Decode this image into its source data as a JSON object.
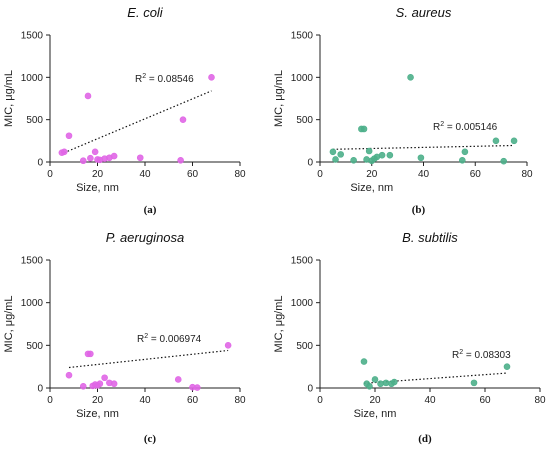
{
  "chart_data": [
    {
      "type": "scatter",
      "title": "E. coli",
      "caption": "(a)",
      "xlabel": "Size, nm",
      "ylabel": "MIC, μg/mL",
      "xlim": [
        0,
        80
      ],
      "ylim": [
        0,
        1500
      ],
      "xticks": [
        0,
        20,
        40,
        60,
        80
      ],
      "yticks": [
        0,
        500,
        1000,
        1500
      ],
      "color": "#e066e6",
      "r2_text": "R",
      "r2_sup": "2",
      "r2_value": " = 0.08546",
      "trend": {
        "x": [
          6,
          68
        ],
        "y": [
          110,
          840
        ]
      },
      "points": [
        {
          "x": 5,
          "y": 110
        },
        {
          "x": 6,
          "y": 120
        },
        {
          "x": 8,
          "y": 310
        },
        {
          "x": 14,
          "y": 15
        },
        {
          "x": 16,
          "y": 780
        },
        {
          "x": 17,
          "y": 45
        },
        {
          "x": 19,
          "y": 120
        },
        {
          "x": 20,
          "y": 30
        },
        {
          "x": 21,
          "y": 25
        },
        {
          "x": 23,
          "y": 40
        },
        {
          "x": 25,
          "y": 50
        },
        {
          "x": 27,
          "y": 70
        },
        {
          "x": 38,
          "y": 50
        },
        {
          "x": 55,
          "y": 20
        },
        {
          "x": 56,
          "y": 500
        },
        {
          "x": 68,
          "y": 1000
        }
      ]
    },
    {
      "type": "scatter",
      "title": "S. aureus",
      "caption": "(b)",
      "xlabel": "Size, nm",
      "ylabel": "MIC, μg/mL",
      "xlim": [
        0,
        80
      ],
      "ylim": [
        0,
        1500
      ],
      "xticks": [
        0,
        20,
        40,
        60,
        80
      ],
      "yticks": [
        0,
        500,
        1000,
        1500
      ],
      "color": "#4caf8a",
      "r2_text": "R",
      "r2_sup": "2",
      "r2_value": " = 0.005146",
      "trend": {
        "x": [
          5,
          75
        ],
        "y": [
          150,
          195
        ]
      },
      "points": [
        {
          "x": 5,
          "y": 120
        },
        {
          "x": 6,
          "y": 30
        },
        {
          "x": 8,
          "y": 90
        },
        {
          "x": 13,
          "y": 20
        },
        {
          "x": 16,
          "y": 390
        },
        {
          "x": 17,
          "y": 390
        },
        {
          "x": 18,
          "y": 30
        },
        {
          "x": 19,
          "y": 130
        },
        {
          "x": 20,
          "y": 15
        },
        {
          "x": 21,
          "y": 40
        },
        {
          "x": 22,
          "y": 60
        },
        {
          "x": 24,
          "y": 80
        },
        {
          "x": 27,
          "y": 80
        },
        {
          "x": 35,
          "y": 1000
        },
        {
          "x": 39,
          "y": 50
        },
        {
          "x": 55,
          "y": 20
        },
        {
          "x": 56,
          "y": 120
        },
        {
          "x": 68,
          "y": 250
        },
        {
          "x": 71,
          "y": 10
        },
        {
          "x": 75,
          "y": 250
        }
      ]
    },
    {
      "type": "scatter",
      "title": "P. aeruginosa",
      "caption": "(c)",
      "xlabel": "Size, nm",
      "ylabel": "MIC, μg/mL",
      "xlim": [
        0,
        80
      ],
      "ylim": [
        0,
        1500
      ],
      "xticks": [
        0,
        20,
        40,
        60,
        80
      ],
      "yticks": [
        0,
        500,
        1000,
        1500
      ],
      "color": "#e066e6",
      "r2_text": "R",
      "r2_sup": "2",
      "r2_value": " = 0.006974",
      "trend": {
        "x": [
          8,
          75
        ],
        "y": [
          240,
          440
        ]
      },
      "points": [
        {
          "x": 8,
          "y": 150
        },
        {
          "x": 14,
          "y": 20
        },
        {
          "x": 16,
          "y": 400
        },
        {
          "x": 17,
          "y": 400
        },
        {
          "x": 18,
          "y": 25
        },
        {
          "x": 19,
          "y": 40
        },
        {
          "x": 20,
          "y": 30
        },
        {
          "x": 21,
          "y": 50
        },
        {
          "x": 23,
          "y": 120
        },
        {
          "x": 25,
          "y": 60
        },
        {
          "x": 27,
          "y": 50
        },
        {
          "x": 54,
          "y": 100
        },
        {
          "x": 60,
          "y": 10
        },
        {
          "x": 62,
          "y": 5
        },
        {
          "x": 75,
          "y": 500
        }
      ]
    },
    {
      "type": "scatter",
      "title": "B. subtilis",
      "caption": "(d)",
      "xlabel": "Size, nm",
      "ylabel": "MIC, μg/mL",
      "xlim": [
        0,
        80
      ],
      "ylim": [
        0,
        1500
      ],
      "xticks": [
        0,
        20,
        40,
        60,
        80
      ],
      "yticks": [
        0,
        500,
        1000,
        1500
      ],
      "color": "#4caf8a",
      "r2_text": "R",
      "r2_sup": "2",
      "r2_value": " = 0.08303",
      "trend": {
        "x": [
          16,
          68
        ],
        "y": [
          55,
          175
        ]
      },
      "points": [
        {
          "x": 16,
          "y": 310
        },
        {
          "x": 17,
          "y": 50
        },
        {
          "x": 18,
          "y": 20
        },
        {
          "x": 20,
          "y": 100
        },
        {
          "x": 22,
          "y": 50
        },
        {
          "x": 24,
          "y": 60
        },
        {
          "x": 26,
          "y": 50
        },
        {
          "x": 27,
          "y": 70
        },
        {
          "x": 56,
          "y": 60
        },
        {
          "x": 68,
          "y": 250
        }
      ]
    }
  ]
}
